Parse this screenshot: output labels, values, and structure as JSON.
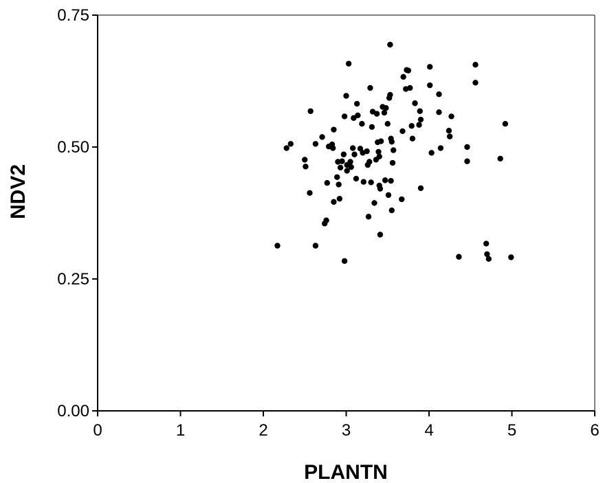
{
  "chart_data": {
    "type": "scatter",
    "title": "",
    "xlabel": "PLANTN",
    "ylabel": "NDV2",
    "xlim": [
      0,
      6
    ],
    "ylim": [
      0,
      0.75
    ],
    "x_ticks": [
      "0",
      "1",
      "2",
      "3",
      "4",
      "5",
      "6"
    ],
    "y_ticks": [
      "0.00",
      "0.25",
      "0.50",
      "0.75"
    ],
    "grid": false,
    "legend": "none",
    "marker_color": "#000000",
    "points": [
      [
        2.17,
        0.313
      ],
      [
        2.28,
        0.498
      ],
      [
        2.33,
        0.506
      ],
      [
        2.5,
        0.476
      ],
      [
        2.51,
        0.463
      ],
      [
        2.56,
        0.413
      ],
      [
        2.57,
        0.568
      ],
      [
        2.63,
        0.506
      ],
      [
        2.63,
        0.313
      ],
      [
        2.71,
        0.519
      ],
      [
        2.74,
        0.355
      ],
      [
        2.76,
        0.361
      ],
      [
        2.77,
        0.432
      ],
      [
        2.79,
        0.501
      ],
      [
        2.83,
        0.505
      ],
      [
        2.84,
        0.498
      ],
      [
        2.85,
        0.533
      ],
      [
        2.85,
        0.396
      ],
      [
        2.89,
        0.443
      ],
      [
        2.9,
        0.472
      ],
      [
        2.91,
        0.429
      ],
      [
        2.92,
        0.402
      ],
      [
        2.93,
        0.461
      ],
      [
        2.95,
        0.473
      ],
      [
        2.97,
        0.486
      ],
      [
        2.98,
        0.558
      ],
      [
        2.98,
        0.284
      ],
      [
        3.0,
        0.597
      ],
      [
        3.01,
        0.455
      ],
      [
        3.01,
        0.466
      ],
      [
        3.03,
        0.658
      ],
      [
        3.05,
        0.472
      ],
      [
        3.06,
        0.462
      ],
      [
        3.08,
        0.498
      ],
      [
        3.09,
        0.555
      ],
      [
        3.1,
        0.486
      ],
      [
        3.12,
        0.44
      ],
      [
        3.13,
        0.582
      ],
      [
        3.14,
        0.56
      ],
      [
        3.17,
        0.497
      ],
      [
        3.19,
        0.544
      ],
      [
        3.2,
        0.489
      ],
      [
        3.21,
        0.434
      ],
      [
        3.25,
        0.492
      ],
      [
        3.26,
        0.466
      ],
      [
        3.27,
        0.368
      ],
      [
        3.28,
        0.472
      ],
      [
        3.29,
        0.612
      ],
      [
        3.3,
        0.433
      ],
      [
        3.31,
        0.538
      ],
      [
        3.32,
        0.567
      ],
      [
        3.34,
        0.394
      ],
      [
        3.36,
        0.476
      ],
      [
        3.37,
        0.563
      ],
      [
        3.38,
        0.509
      ],
      [
        3.39,
        0.491
      ],
      [
        3.4,
        0.482
      ],
      [
        3.4,
        0.427
      ],
      [
        3.41,
        0.421
      ],
      [
        3.41,
        0.334
      ],
      [
        3.42,
        0.511
      ],
      [
        3.44,
        0.576
      ],
      [
        3.46,
        0.565
      ],
      [
        3.47,
        0.437
      ],
      [
        3.48,
        0.574
      ],
      [
        3.5,
        0.544
      ],
      [
        3.51,
        0.409
      ],
      [
        3.52,
        0.593
      ],
      [
        3.53,
        0.599
      ],
      [
        3.53,
        0.694
      ],
      [
        3.54,
        0.436
      ],
      [
        3.54,
        0.516
      ],
      [
        3.55,
        0.51
      ],
      [
        3.55,
        0.38
      ],
      [
        3.56,
        0.47
      ],
      [
        3.57,
        0.494
      ],
      [
        3.67,
        0.401
      ],
      [
        3.68,
        0.53
      ],
      [
        3.69,
        0.633
      ],
      [
        3.72,
        0.61
      ],
      [
        3.73,
        0.646
      ],
      [
        3.75,
        0.645
      ],
      [
        3.77,
        0.612
      ],
      [
        3.79,
        0.54
      ],
      [
        3.8,
        0.516
      ],
      [
        3.83,
        0.583
      ],
      [
        3.88,
        0.542
      ],
      [
        3.89,
        0.568
      ],
      [
        3.9,
        0.422
      ],
      [
        3.9,
        0.552
      ],
      [
        4.01,
        0.652
      ],
      [
        4.01,
        0.617
      ],
      [
        4.03,
        0.489
      ],
      [
        4.12,
        0.6
      ],
      [
        4.12,
        0.566
      ],
      [
        4.14,
        0.498
      ],
      [
        4.24,
        0.531
      ],
      [
        4.25,
        0.52
      ],
      [
        4.27,
        0.558
      ],
      [
        4.36,
        0.292
      ],
      [
        4.46,
        0.5
      ],
      [
        4.46,
        0.473
      ],
      [
        4.56,
        0.656
      ],
      [
        4.56,
        0.622
      ],
      [
        4.69,
        0.317
      ],
      [
        4.7,
        0.297
      ],
      [
        4.72,
        0.288
      ],
      [
        4.86,
        0.478
      ],
      [
        4.92,
        0.544
      ],
      [
        4.99,
        0.291
      ]
    ]
  }
}
